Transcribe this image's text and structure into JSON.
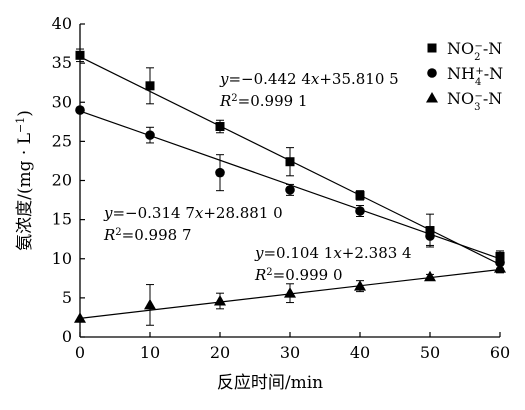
{
  "chart_data": {
    "type": "scatter",
    "title": "",
    "xlabel": "反应时间/min",
    "ylabel_main": "氨浓度/(mg · L",
    "ylabel_sup": "−1",
    "ylabel_tail": ")",
    "xlim": [
      0,
      60
    ],
    "ylim": [
      0,
      40
    ],
    "xticks": [
      0,
      10,
      20,
      30,
      40,
      50,
      60
    ],
    "yticks": [
      0,
      5,
      10,
      15,
      20,
      25,
      30,
      35,
      40
    ],
    "legend_position": "top-right",
    "series": [
      {
        "name": "NO2−-N",
        "label_main": "NO",
        "label_sub": "2",
        "label_sup": "−",
        "label_tail": "-N",
        "marker": "square",
        "x": [
          0,
          10,
          20,
          30,
          40,
          50,
          60
        ],
        "y": [
          36.0,
          32.1,
          26.9,
          22.4,
          18.1,
          13.6,
          10.3
        ],
        "err": [
          0.8,
          2.3,
          0.8,
          1.8,
          0.6,
          2.1,
          0.7
        ],
        "fit": {
          "slope": -0.4424,
          "intercept": 35.8105
        },
        "eq_line": "y=−0.442 4x+35.810 5",
        "r2_value": "=0.999 1"
      },
      {
        "name": "NH4+-N",
        "label_main": "NH",
        "label_sub": "4",
        "label_sup": "+",
        "label_tail": "-N",
        "marker": "circle",
        "x": [
          0,
          10,
          20,
          30,
          40,
          50,
          60
        ],
        "y": [
          29.0,
          25.8,
          21.0,
          18.8,
          16.1,
          12.9,
          9.5
        ],
        "err": [
          0.0,
          1.0,
          2.3,
          0.7,
          0.7,
          1.2,
          0.7
        ],
        "fit": {
          "slope": -0.3147,
          "intercept": 28.881
        },
        "eq_line": "y=−0.314 7x+28.881 0",
        "r2_value": "=0.998 7"
      },
      {
        "name": "NO3−-N",
        "label_main": "NO",
        "label_sub": "3",
        "label_sup": "−",
        "label_tail": "-N",
        "marker": "triangle",
        "x": [
          0,
          10,
          20,
          30,
          40,
          50,
          60
        ],
        "y": [
          2.4,
          4.1,
          4.6,
          5.6,
          6.5,
          7.7,
          8.8
        ],
        "err": [
          0.0,
          2.6,
          1.0,
          1.2,
          0.7,
          0.3,
          0.6
        ],
        "fit": {
          "slope": 0.1041,
          "intercept": 2.3834
        },
        "eq_line": "y=0.104 1x+2.383 4",
        "r2_value": "=0.999 0"
      }
    ]
  }
}
